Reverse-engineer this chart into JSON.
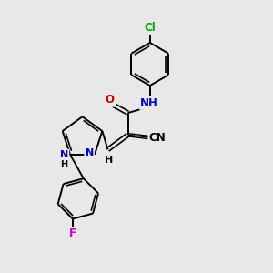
{
  "background_color": "#e8e8e8",
  "bond_color": "#000000",
  "atom_colors": {
    "N": "#0000cc",
    "O": "#cc0000",
    "Cl": "#00aa00",
    "F": "#cc00cc",
    "C": "#000000",
    "H": "#000000"
  },
  "figsize": [
    3.0,
    3.0
  ],
  "dpi": 100
}
